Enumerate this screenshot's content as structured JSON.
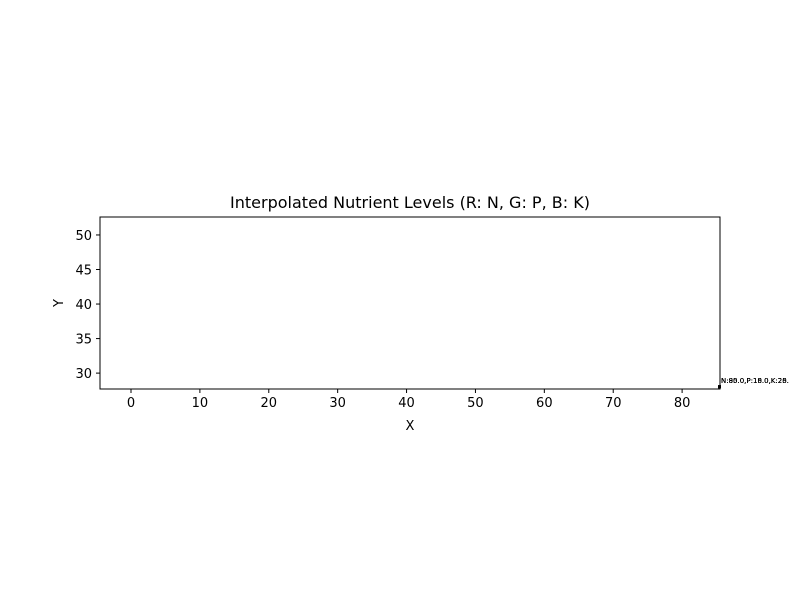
{
  "chart_data": {
    "type": "scatter",
    "title": "Interpolated Nutrient Levels (R: N, G: P, B: K)",
    "xlabel": "X",
    "ylabel": "Y",
    "xlim": [
      -4.5,
      85.5
    ],
    "ylim": [
      27.7,
      52.6
    ],
    "xticks": [
      0,
      10,
      20,
      30,
      40,
      50,
      60,
      70,
      80
    ],
    "yticks": [
      30,
      35,
      40,
      45,
      50
    ],
    "grid": false,
    "points": [
      {
        "x": 85.5,
        "y": 28.1,
        "label": "N:80.0,P:10.0,K:20."
      },
      {
        "x": 85.5,
        "y": 28.1,
        "label": "N:85.0,P:15.0,K:25."
      },
      {
        "x": 85.5,
        "y": 28.1,
        "label": "N:90.0,P:18.0,K:28."
      }
    ]
  }
}
